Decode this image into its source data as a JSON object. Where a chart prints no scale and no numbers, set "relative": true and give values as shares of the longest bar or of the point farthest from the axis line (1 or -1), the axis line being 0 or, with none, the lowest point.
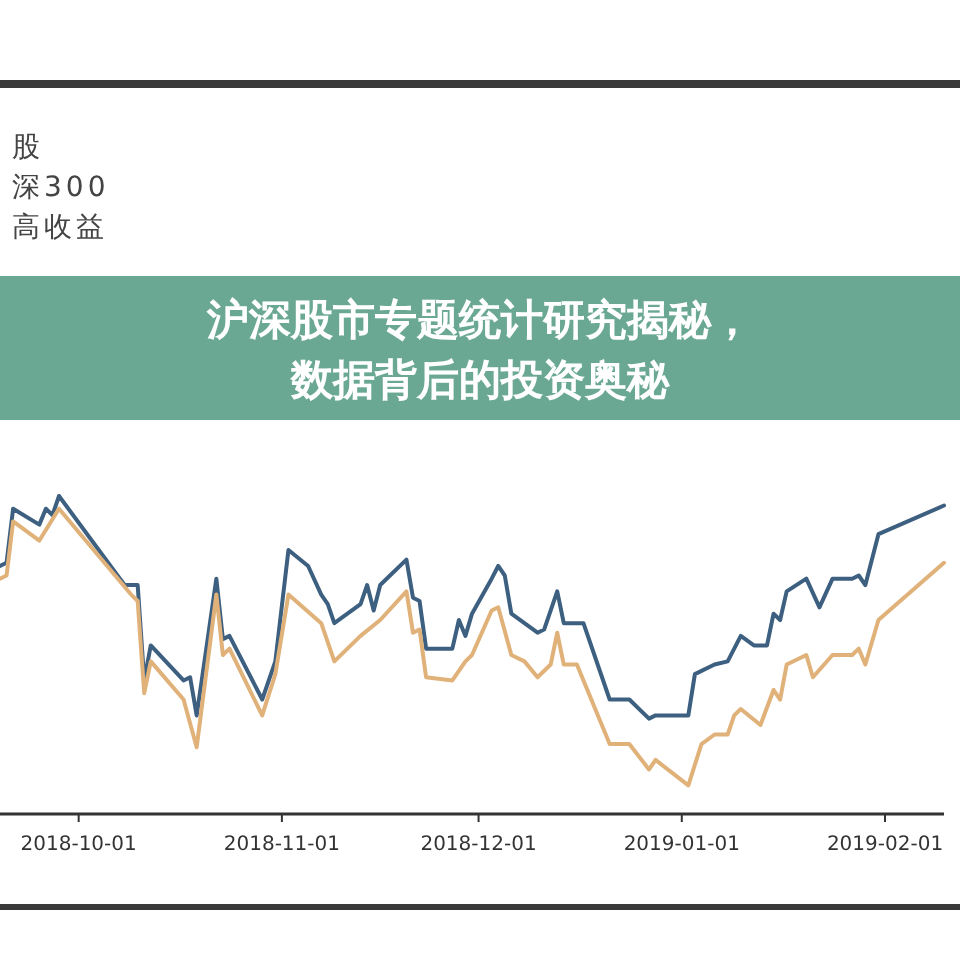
{
  "chart_data": {
    "type": "line",
    "title": "沪深股市专题统计研究揭秘，数据背后的投资奥秘",
    "annotations": [
      "股",
      "深300",
      "高收益"
    ],
    "relative": true,
    "xlim": [
      "2018-09-19",
      "2019-02-10"
    ],
    "xticks": [
      "2018-10-01",
      "2018-11-01",
      "2018-12-01",
      "2019-01-01",
      "2019-02-01"
    ],
    "series": [
      {
        "color": "#3d5f80",
        "x": [
          "2018-09-19",
          "2018-09-20",
          "2018-09-21",
          "2018-09-25",
          "2018-09-26",
          "2018-09-27",
          "2018-09-28",
          "2018-10-08",
          "2018-10-10",
          "2018-10-11",
          "2018-10-12",
          "2018-10-17",
          "2018-10-18",
          "2018-10-19",
          "2018-10-22",
          "2018-10-23",
          "2018-10-24",
          "2018-10-29",
          "2018-10-31",
          "2018-11-02",
          "2018-11-05",
          "2018-11-07",
          "2018-11-08",
          "2018-11-09",
          "2018-11-13",
          "2018-11-14",
          "2018-11-15",
          "2018-11-16",
          "2018-11-20",
          "2018-11-21",
          "2018-11-22",
          "2018-11-23",
          "2018-11-27",
          "2018-11-28",
          "2018-11-29",
          "2018-11-30",
          "2018-12-03",
          "2018-12-04",
          "2018-12-05",
          "2018-12-06",
          "2018-12-10",
          "2018-12-11",
          "2018-12-13",
          "2018-12-14",
          "2018-12-17",
          "2018-12-21",
          "2018-12-24",
          "2018-12-27",
          "2018-12-28",
          "2019-01-02",
          "2019-01-03",
          "2019-01-06",
          "2019-01-08",
          "2019-01-09",
          "2019-01-10",
          "2019-01-12",
          "2019-01-14",
          "2019-01-15",
          "2019-01-16",
          "2019-01-17",
          "2019-01-20",
          "2019-01-22",
          "2019-01-24",
          "2019-01-27",
          "2019-01-28",
          "2019-01-29",
          "2019-01-31",
          "2019-02-10"
        ],
        "values": [
          0.78,
          0.79,
          0.96,
          0.91,
          0.96,
          0.94,
          1.0,
          0.72,
          0.72,
          0.42,
          0.53,
          0.42,
          0.43,
          0.31,
          0.74,
          0.55,
          0.56,
          0.36,
          0.48,
          0.83,
          0.78,
          0.69,
          0.66,
          0.6,
          0.66,
          0.72,
          0.64,
          0.72,
          0.8,
          0.68,
          0.67,
          0.52,
          0.52,
          0.61,
          0.56,
          0.63,
          0.74,
          0.78,
          0.75,
          0.63,
          0.57,
          0.58,
          0.7,
          0.6,
          0.6,
          0.36,
          0.36,
          0.3,
          0.31,
          0.31,
          0.44,
          0.47,
          0.48,
          0.52,
          0.56,
          0.53,
          0.53,
          0.63,
          0.61,
          0.7,
          0.74,
          0.65,
          0.74,
          0.74,
          0.75,
          0.72,
          0.88,
          0.97
        ]
      },
      {
        "color": "#e0b27a",
        "x": [
          "2018-09-19",
          "2018-09-20",
          "2018-09-21",
          "2018-09-25",
          "2018-09-28",
          "2018-10-09",
          "2018-10-10",
          "2018-10-11",
          "2018-10-12",
          "2018-10-17",
          "2018-10-19",
          "2018-10-22",
          "2018-10-23",
          "2018-10-24",
          "2018-10-29",
          "2018-10-31",
          "2018-11-02",
          "2018-11-07",
          "2018-11-09",
          "2018-11-13",
          "2018-11-16",
          "2018-11-20",
          "2018-11-21",
          "2018-11-22",
          "2018-11-23",
          "2018-11-27",
          "2018-11-29",
          "2018-11-30",
          "2018-12-03",
          "2018-12-04",
          "2018-12-06",
          "2018-12-08",
          "2018-12-10",
          "2018-12-12",
          "2018-12-13",
          "2018-12-14",
          "2018-12-16",
          "2018-12-21",
          "2018-12-24",
          "2018-12-27",
          "2018-12-28",
          "2019-01-02",
          "2019-01-04",
          "2019-01-06",
          "2019-01-08",
          "2019-01-09",
          "2019-01-10",
          "2019-01-13",
          "2019-01-15",
          "2019-01-16",
          "2019-01-17",
          "2019-01-20",
          "2019-01-21",
          "2019-01-24",
          "2019-01-27",
          "2019-01-28",
          "2019-01-29",
          "2019-01-31",
          "2019-02-10"
        ],
        "values": [
          0.74,
          0.75,
          0.92,
          0.86,
          0.96,
          0.69,
          0.67,
          0.38,
          0.48,
          0.36,
          0.21,
          0.69,
          0.5,
          0.52,
          0.31,
          0.44,
          0.69,
          0.6,
          0.48,
          0.56,
          0.61,
          0.7,
          0.57,
          0.58,
          0.43,
          0.42,
          0.48,
          0.5,
          0.64,
          0.65,
          0.5,
          0.48,
          0.43,
          0.47,
          0.57,
          0.47,
          0.47,
          0.22,
          0.22,
          0.14,
          0.17,
          0.09,
          0.22,
          0.25,
          0.25,
          0.31,
          0.33,
          0.28,
          0.39,
          0.36,
          0.47,
          0.5,
          0.43,
          0.5,
          0.5,
          0.52,
          0.47,
          0.61,
          0.79
        ]
      }
    ]
  }
}
